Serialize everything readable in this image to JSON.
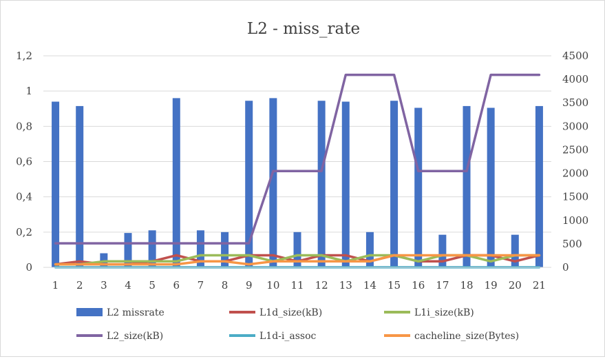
{
  "chart_data": {
    "type": "bar",
    "title": "L2 - miss_rate",
    "categories": [
      "1",
      "2",
      "3",
      "4",
      "5",
      "6",
      "7",
      "8",
      "9",
      "10",
      "11",
      "12",
      "13",
      "14",
      "15",
      "16",
      "17",
      "18",
      "19",
      "20",
      "21"
    ],
    "y_left": {
      "min": 0,
      "max": 1.2,
      "step": 0.2,
      "tick_labels": [
        "0",
        "0,2",
        "0,4",
        "0,6",
        "0,8",
        "1",
        "1,2"
      ]
    },
    "y_right": {
      "min": 0,
      "max": 4500,
      "step": 500,
      "tick_labels": [
        "0",
        "500",
        "1000",
        "1500",
        "2000",
        "2500",
        "3000",
        "3500",
        "4000",
        "4500"
      ]
    },
    "grid": true,
    "legend_position": "bottom",
    "series": [
      {
        "name": "L2 missrate",
        "type": "bar",
        "axis": "left",
        "color": "#4472C4",
        "values": [
          0.94,
          0.915,
          0.08,
          0.195,
          0.21,
          0.96,
          0.21,
          0.2,
          0.945,
          0.96,
          0.2,
          0.945,
          0.94,
          0.2,
          0.945,
          0.905,
          0.185,
          0.915,
          0.905,
          0.185,
          0.915
        ]
      },
      {
        "name": "L1d_size(kB)",
        "type": "line",
        "axis": "right",
        "color": "#C0504D",
        "values": [
          64,
          128,
          64,
          64,
          128,
          256,
          128,
          128,
          256,
          256,
          128,
          256,
          256,
          128,
          256,
          128,
          128,
          256,
          256,
          128,
          256
        ]
      },
      {
        "name": "L1i_size(kB)",
        "type": "line",
        "axis": "right",
        "color": "#9BBB59",
        "values": [
          64,
          64,
          128,
          128,
          128,
          128,
          256,
          256,
          256,
          128,
          256,
          256,
          128,
          256,
          256,
          128,
          256,
          256,
          128,
          256,
          256
        ]
      },
      {
        "name": "L2_size(kB)",
        "type": "line",
        "axis": "right",
        "color": "#8064A2",
        "values": [
          512,
          512,
          512,
          512,
          512,
          512,
          512,
          512,
          512,
          2048,
          2048,
          2048,
          4096,
          4096,
          4096,
          2048,
          2048,
          2048,
          4096,
          4096,
          4096
        ]
      },
      {
        "name": "L1d-i_assoc",
        "type": "line",
        "axis": "right",
        "color": "#4BACC6",
        "values": [
          2,
          2,
          2,
          2,
          2,
          2,
          2,
          2,
          2,
          2,
          2,
          2,
          2,
          2,
          2,
          2,
          2,
          2,
          2,
          2,
          2
        ]
      },
      {
        "name": "cacheline_size(Bytes)",
        "type": "line",
        "axis": "right",
        "color": "#F79646",
        "values": [
          64,
          64,
          64,
          64,
          64,
          64,
          128,
          128,
          64,
          128,
          128,
          128,
          128,
          128,
          256,
          256,
          256,
          256,
          256,
          256,
          256
        ]
      }
    ]
  }
}
